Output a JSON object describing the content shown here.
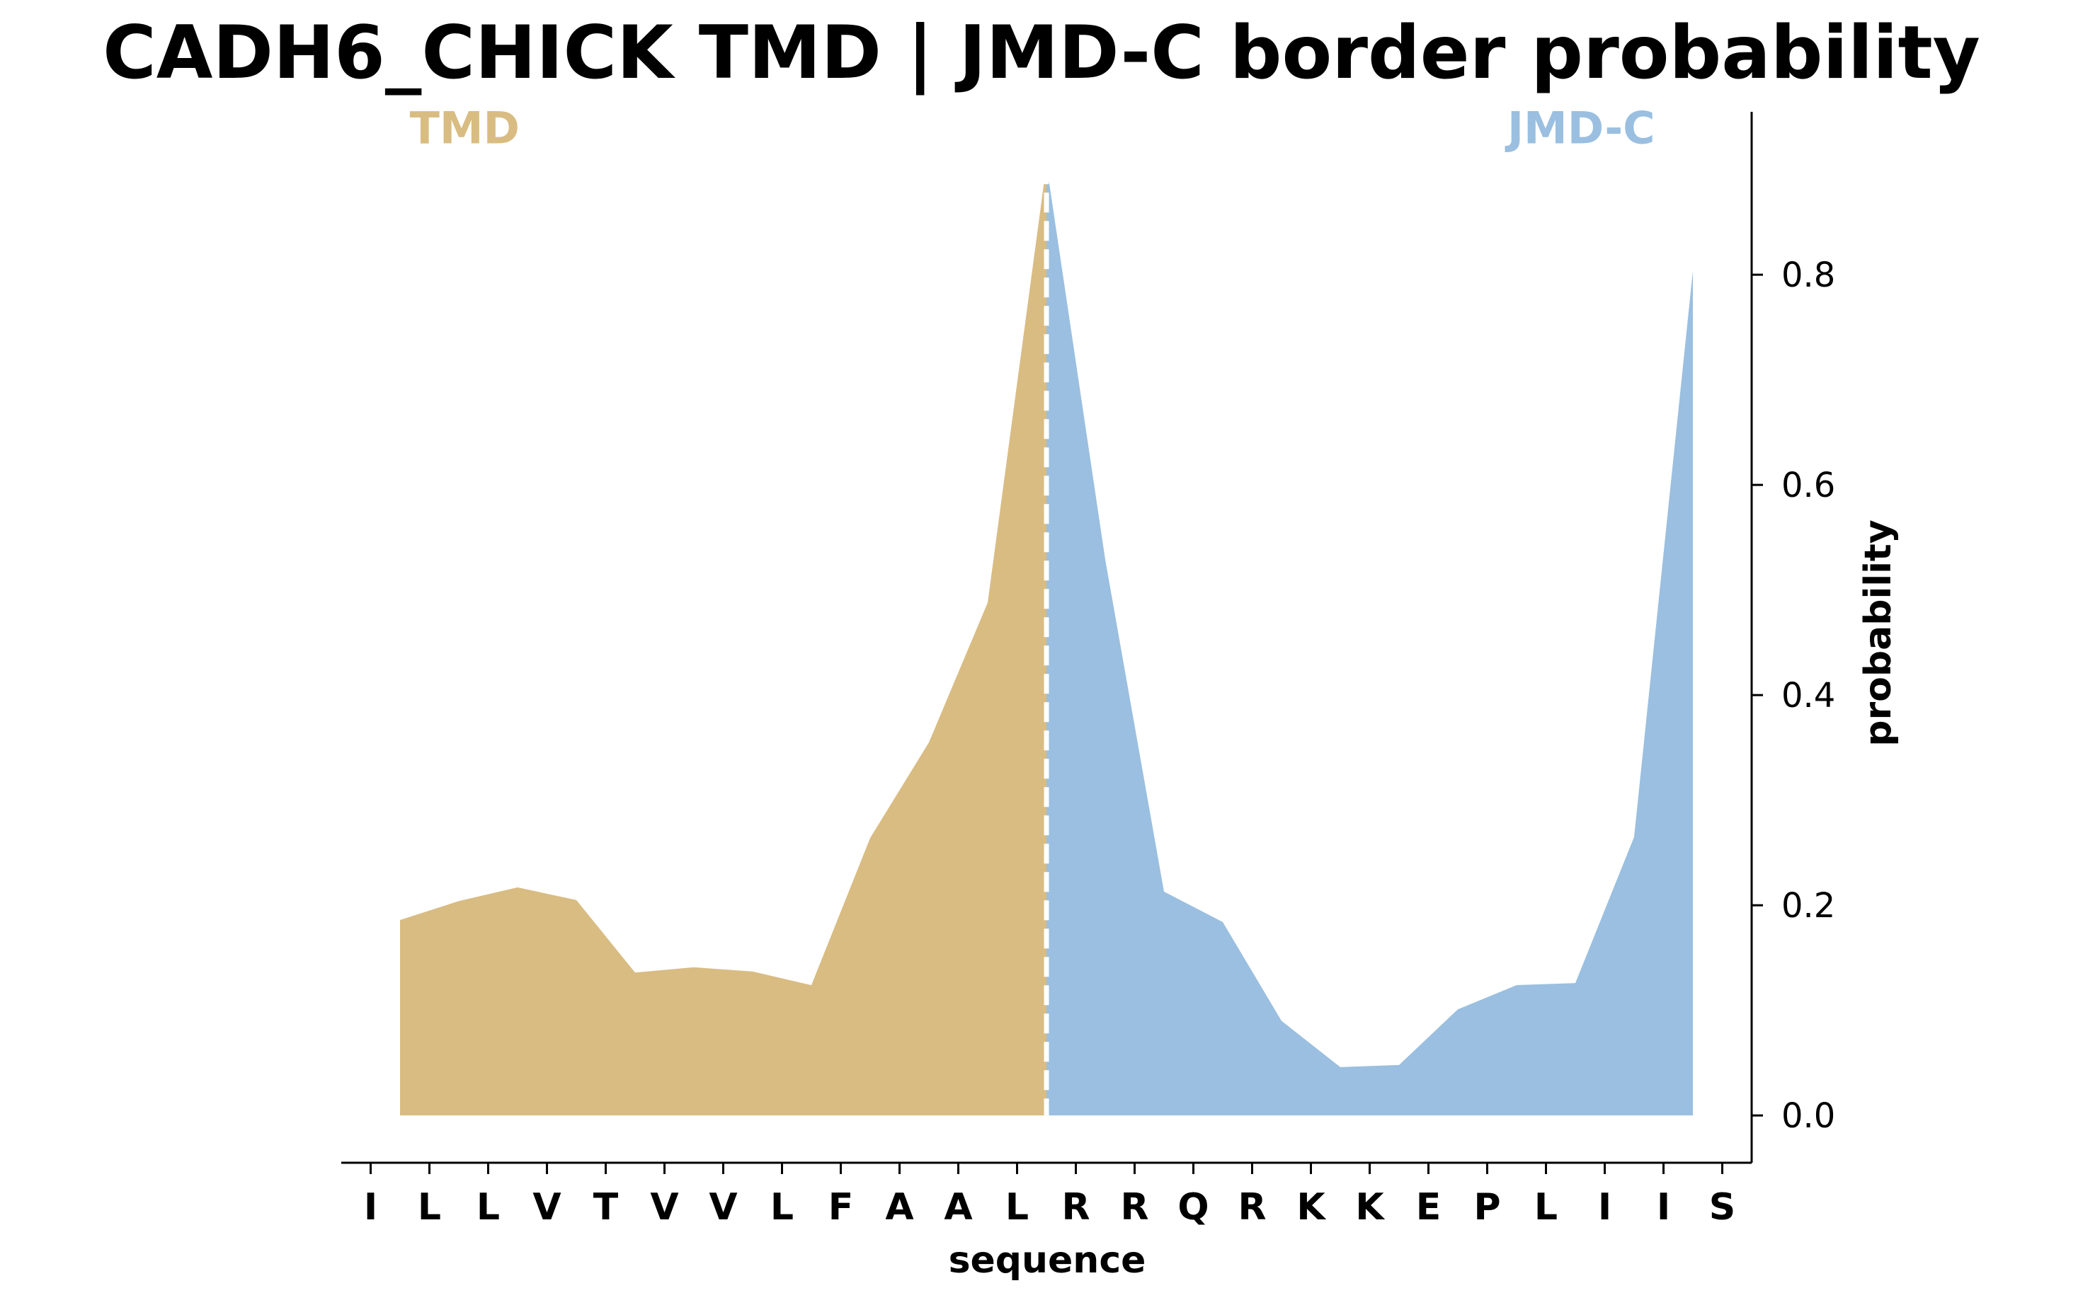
{
  "chart_data": {
    "type": "area",
    "title": "CADH6_CHICK TMD | JMD-C border probability",
    "xlabel": "sequence",
    "ylabel": "probability",
    "ylim": [
      -0.045,
      0.955
    ],
    "yticks": [
      0.0,
      0.2,
      0.4,
      0.6,
      0.8
    ],
    "ytick_labels": [
      "0.0",
      "0.2",
      "0.4",
      "0.6",
      "0.8"
    ],
    "categories": [
      "I",
      "L",
      "L",
      "V",
      "T",
      "V",
      "V",
      "L",
      "F",
      "A",
      "A",
      "L",
      "R",
      "R",
      "Q",
      "R",
      "K",
      "K",
      "E",
      "P",
      "L",
      "I",
      "I",
      "S"
    ],
    "x": [
      0.5,
      1.5,
      2.5,
      3.5,
      4.5,
      5.5,
      6.5,
      7.5,
      8.5,
      9.5,
      10.5,
      11.5,
      12.5,
      13.5,
      14.5,
      15.5,
      16.5,
      17.5,
      18.5,
      19.5,
      20.5,
      21.5,
      22.5
    ],
    "values": [
      0.186,
      0.204,
      0.217,
      0.205,
      0.136,
      0.141,
      0.137,
      0.124,
      0.264,
      0.355,
      0.488,
      0.905,
      0.529,
      0.213,
      0.184,
      0.09,
      0.046,
      0.048,
      0.101,
      0.124,
      0.126,
      0.265,
      0.804
    ],
    "border_x": 11.5,
    "region_labels": [
      {
        "text": "TMD",
        "color": "#d9bc82"
      },
      {
        "text": "JMD-C",
        "color": "#9abfe0"
      }
    ],
    "series": [
      {
        "name": "TMD",
        "color": "#d9bc82",
        "from_x": 0.5,
        "to_x": 11.5
      },
      {
        "name": "JMD-C",
        "color": "#9abfe0",
        "from_x": 11.5,
        "to_x": 22.5
      }
    ],
    "y_axis_side": "right",
    "grid": false
  }
}
